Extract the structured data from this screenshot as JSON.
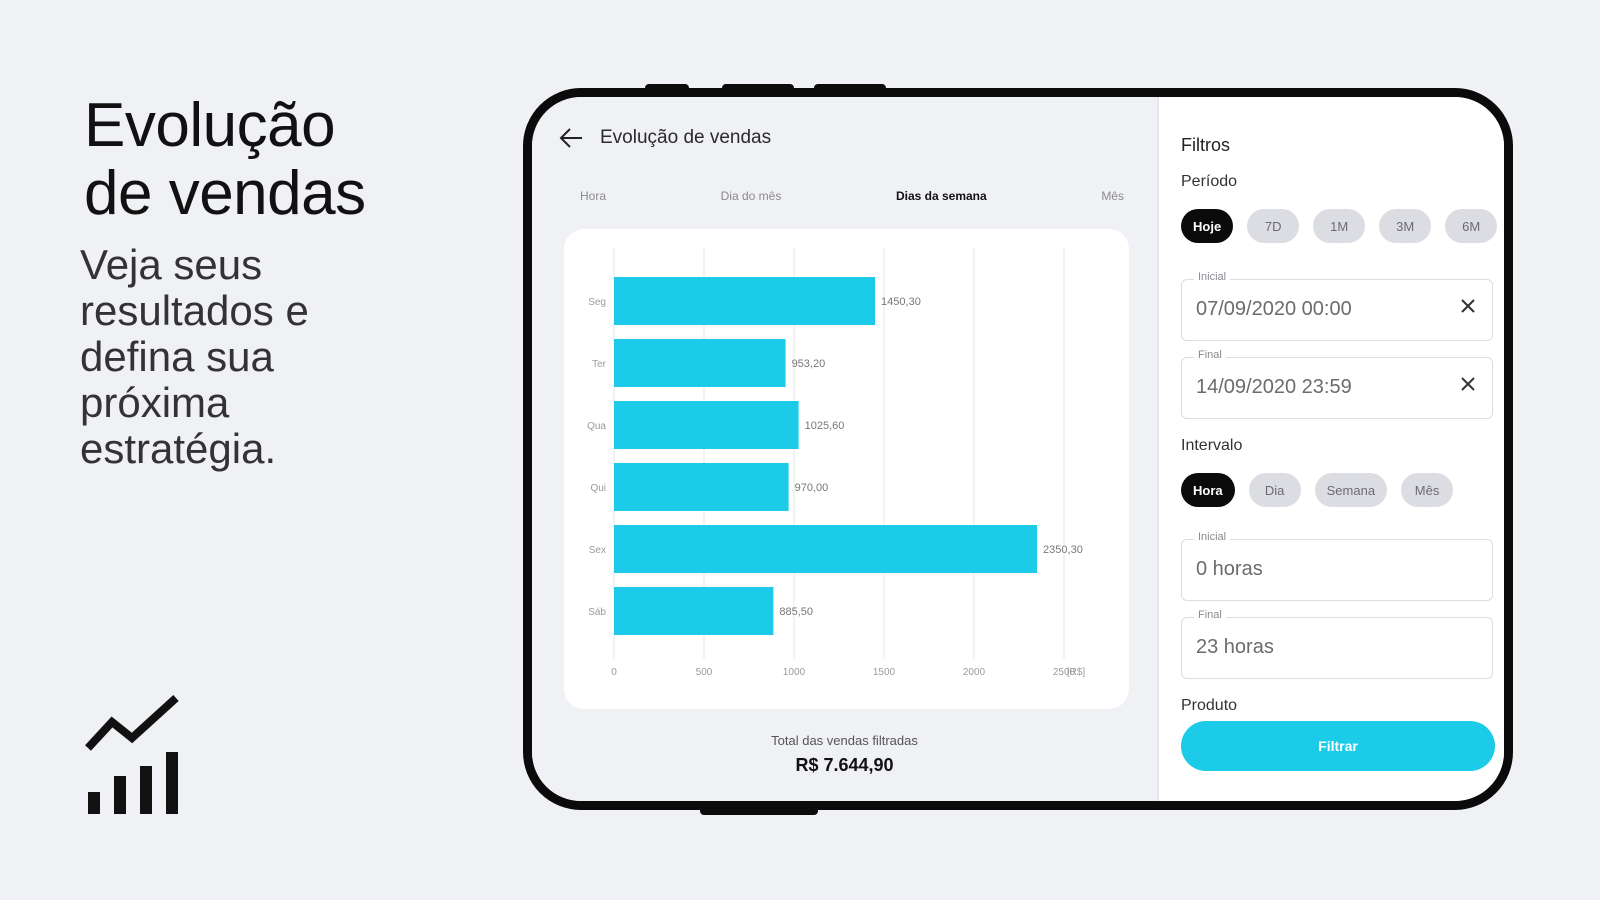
{
  "promo": {
    "title_line1": "Evolução",
    "title_line2": "de vendas",
    "subtitle_lines": [
      "Veja seus",
      "resultados e",
      "defina sua",
      "próxima",
      "estratégia."
    ]
  },
  "screen": {
    "header_title": "Evolução de vendas",
    "tabs": [
      {
        "label": "Hora",
        "active": false
      },
      {
        "label": "Dia do mês",
        "active": false
      },
      {
        "label": "Dias da semana",
        "active": true
      },
      {
        "label": "Mês",
        "active": false
      }
    ],
    "total_label": "Total das vendas filtradas",
    "total_value": "R$ 7.644,90"
  },
  "chart_data": {
    "type": "bar",
    "orientation": "horizontal",
    "categories": [
      "Seg",
      "Ter",
      "Qua",
      "Qui",
      "Sex",
      "Sáb"
    ],
    "values": [
      1450.3,
      953.2,
      1025.6,
      970.0,
      2350.3,
      885.5
    ],
    "value_labels": [
      "1450,30",
      "953,20",
      "1025,60",
      "970,00",
      "2350,30",
      "885,50"
    ],
    "x_ticks": [
      "0",
      "500",
      "1000",
      "1500",
      "2000",
      "2500",
      "[R$]"
    ],
    "xlim": [
      0,
      2500
    ],
    "color": "#1ccbe8",
    "grid": true
  },
  "filters": {
    "title": "Filtros",
    "period_label": "Período",
    "period_chips": [
      {
        "label": "Hoje",
        "active": true
      },
      {
        "label": "7D",
        "active": false
      },
      {
        "label": "1M",
        "active": false
      },
      {
        "label": "3M",
        "active": false
      },
      {
        "label": "6M",
        "active": false
      }
    ],
    "start_label": "Inicial",
    "start_value": "07/09/2020   00:00",
    "end_label": "Final",
    "end_value": "14/09/2020   23:59",
    "interval_label": "Intervalo",
    "interval_chips": [
      {
        "label": "Hora",
        "active": true
      },
      {
        "label": "Dia",
        "active": false
      },
      {
        "label": "Semana",
        "active": false
      },
      {
        "label": "Mês",
        "active": false
      }
    ],
    "interval_start_label": "Inicial",
    "interval_start_value": "0 horas",
    "interval_end_label": "Final",
    "interval_end_value": "23 horas",
    "product_label": "Produto",
    "filter_button_label": "Filtrar"
  },
  "colors": {
    "accent": "#1ccbe8",
    "background": "#f0f1f5",
    "chip_active": "#0b0b0b"
  }
}
